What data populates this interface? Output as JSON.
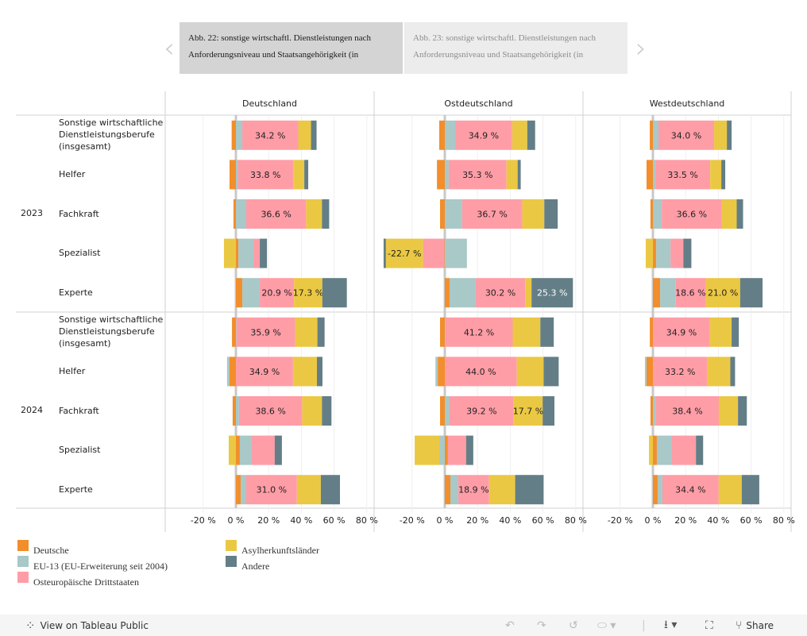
{
  "story_nav": {
    "prev_icon": "chevron-left-icon",
    "next_icon": "chevron-right-icon",
    "points": [
      {
        "text": "Abb. 22: sonstige wirtschaftl. Dienstleistungen nach Anforderungsniveau und Staatsangehörigkeit (in",
        "active": true
      },
      {
        "text": "Abb. 23: sonstige wirtschaftl. Dienstleistungen nach Anforderungsniveau und Staatsangehörigkeit (in",
        "active": false
      }
    ]
  },
  "chart_data": {
    "type": "bar",
    "orientation": "horizontal",
    "stacked": true,
    "diverging": true,
    "panels": [
      "Deutschland",
      "Ostdeutschland",
      "Westdeutschland"
    ],
    "years": [
      "2023",
      "2024"
    ],
    "categories": [
      "Sonstige wirtschaftliche Dienstleistungsberufe (insgesamt)",
      "Helfer",
      "Fachkraft",
      "Spezialist",
      "Experte"
    ],
    "xlim": [
      -30,
      85
    ],
    "xticks": [
      -20,
      0,
      20,
      40,
      60,
      80
    ],
    "xtick_labels": [
      "-20 %",
      "0 %",
      "20 %",
      "40 %",
      "60 %",
      "80 %"
    ],
    "grid": true,
    "series": [
      {
        "name": "Deutsche",
        "color": "#f28e2b"
      },
      {
        "name": "EU-13 (EU-Erweiterung seit 2004)",
        "color": "#a9c8c8"
      },
      {
        "name": "Osteuropäische Drittstaaten",
        "color": "#ff9da7"
      },
      {
        "name": "Asylherkunftsländer",
        "color": "#ebc843"
      },
      {
        "name": "Andere",
        "color": "#637e86"
      }
    ],
    "values": {
      "Deutschland": {
        "2023": [
          [
            -2.6,
            3.9,
            34.2,
            7.8,
            3.4
          ],
          [
            -3.9,
            1.2,
            33.8,
            6.8,
            2.4
          ],
          [
            -1.5,
            6.3,
            36.6,
            9.7,
            4.4
          ],
          [
            1.5,
            9.2,
            3.9,
            -7.3,
            4.4
          ],
          [
            3.9,
            10.7,
            20.9,
            17.3,
            15.0
          ]
        ],
        "2024": [
          [
            -2.4,
            0.3,
            35.9,
            13.6,
            4.4
          ],
          [
            -3.9,
            -1.5,
            34.9,
            14.6,
            3.4
          ],
          [
            -2.0,
            1.9,
            38.6,
            12.1,
            5.8
          ],
          [
            2.4,
            7.3,
            14.0,
            -4.4,
            4.4
          ],
          [
            2.9,
            3.4,
            31.0,
            14.6,
            11.7
          ]
        ]
      },
      "Ostdeutschland": {
        "2023": [
          [
            -3.4,
            6.3,
            34.9,
            9.2,
            4.8
          ],
          [
            -4.8,
            2.4,
            35.3,
            6.8,
            1.9
          ],
          [
            -2.9,
            10.6,
            36.7,
            13.5,
            8.2
          ],
          [
            -0.3,
            13.5,
            -13.0,
            -22.7,
            -1.4
          ],
          [
            2.9,
            16.0,
            30.2,
            3.9,
            25.3
          ]
        ],
        "2024": [
          [
            -2.9,
            0.3,
            41.2,
            16.9,
            8.2
          ],
          [
            -4.3,
            -1.4,
            44.0,
            16.4,
            9.2
          ],
          [
            -2.9,
            2.9,
            39.2,
            17.7,
            7.2
          ],
          [
            1.9,
            -3.4,
            11.1,
            -15.0,
            4.4
          ],
          [
            3.4,
            4.8,
            18.9,
            15.9,
            17.4
          ]
        ]
      },
      "Westdeutschland": {
        "2023": [
          [
            -1.9,
            3.4,
            34.0,
            7.8,
            2.9
          ],
          [
            -3.9,
            1.5,
            33.5,
            6.8,
            2.4
          ],
          [
            -1.5,
            5.4,
            36.6,
            9.2,
            3.9
          ],
          [
            2.0,
            8.8,
            7.8,
            -4.4,
            4.9
          ],
          [
            4.4,
            9.3,
            18.6,
            21.0,
            13.7
          ]
        ],
        "2024": [
          [
            -1.9,
            0.0,
            34.9,
            13.2,
            4.4
          ],
          [
            -3.9,
            -1.0,
            33.2,
            14.1,
            2.9
          ],
          [
            -1.5,
            1.9,
            38.4,
            11.7,
            5.4
          ],
          [
            2.4,
            8.8,
            15.1,
            -2.4,
            4.4
          ],
          [
            2.9,
            2.9,
            34.4,
            14.1,
            10.7
          ]
        ]
      }
    },
    "data_labels": {
      "Deutschland": {
        "2023": [
          {
            "2": "34.2 %"
          },
          {
            "2": "33.8 %"
          },
          {
            "2": "36.6 %"
          },
          {},
          {
            "2": "20.9 %",
            "3": "17.3 %"
          }
        ],
        "2024": [
          {
            "2": "35.9 %"
          },
          {
            "2": "34.9 %"
          },
          {
            "2": "38.6 %"
          },
          {},
          {
            "2": "31.0 %"
          }
        ]
      },
      "Ostdeutschland": {
        "2023": [
          {
            "2": "34.9 %"
          },
          {
            "2": "35.3 %"
          },
          {
            "2": "36.7 %"
          },
          {
            "3": "-22.7 %"
          },
          {
            "2": "30.2 %",
            "4": "25.3 %"
          }
        ],
        "2024": [
          {
            "2": "41.2 %"
          },
          {
            "2": "44.0 %"
          },
          {
            "2": "39.2 %",
            "3": "17.7 %"
          },
          {},
          {
            "2": "18.9 %"
          }
        ]
      },
      "Westdeutschland": {
        "2023": [
          {
            "2": "34.0 %"
          },
          {
            "2": "33.5 %"
          },
          {
            "2": "36.6 %"
          },
          {},
          {
            "2": "18.6 %",
            "3": "21.0 %"
          }
        ],
        "2024": [
          {
            "2": "34.9 %"
          },
          {
            "2": "33.2 %"
          },
          {
            "2": "38.4 %"
          },
          {},
          {
            "2": "34.4 %"
          }
        ]
      }
    },
    "legend_position": "bottom-left"
  },
  "row_labels": {
    "insgesamt": "Sonstige wirtschaftliche\nDienstleistungsberufe\n(insgesamt)",
    "helfer": "Helfer",
    "fachkraft": "Fachkraft",
    "spezialist": "Spezialist",
    "experte": "Experte"
  },
  "legend": {
    "items": [
      {
        "label": "Deutsche",
        "color": "#f28e2b"
      },
      {
        "label": "EU-13 (EU-Erweiterung seit 2004)",
        "color": "#a9c8c8"
      },
      {
        "label": "Osteuropäische Drittstaaten",
        "color": "#ff9da7"
      },
      {
        "label": "Asylherkunftsländer",
        "color": "#ebc843"
      },
      {
        "label": "Andere",
        "color": "#637e86"
      }
    ]
  },
  "footer": {
    "view_on_tableau": "View on Tableau Public",
    "share": "Share",
    "icons": [
      "tableau-logo-icon",
      "undo-icon",
      "redo-icon",
      "revert-icon",
      "pause-icon",
      "download-icon",
      "fullscreen-icon",
      "share-icon"
    ]
  }
}
